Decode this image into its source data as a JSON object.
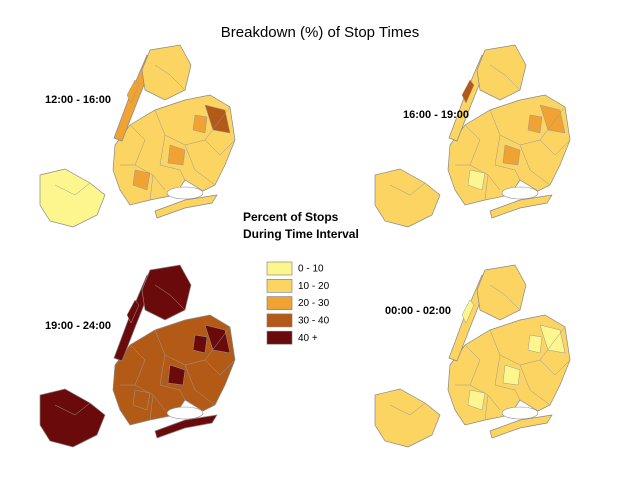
{
  "title": "Breakdown (%) of Stop Times",
  "panels": [
    {
      "label": "12:00 - 16:00"
    },
    {
      "label": "16:00 - 19:00"
    },
    {
      "label": "19:00 - 24:00"
    },
    {
      "label": "00:00 - 02:00"
    }
  ],
  "legend": {
    "title": [
      "Percent of Stops",
      "During Time Interval"
    ],
    "items": [
      {
        "label": "0 - 10",
        "color": "#fdf68f"
      },
      {
        "label": "10 - 20",
        "color": "#fcd462"
      },
      {
        "label": "20 - 30",
        "color": "#f0a232"
      },
      {
        "label": "30 - 40",
        "color": "#b45a17"
      },
      {
        "label": "40 +",
        "color": "#6b0a0a"
      }
    ]
  }
}
